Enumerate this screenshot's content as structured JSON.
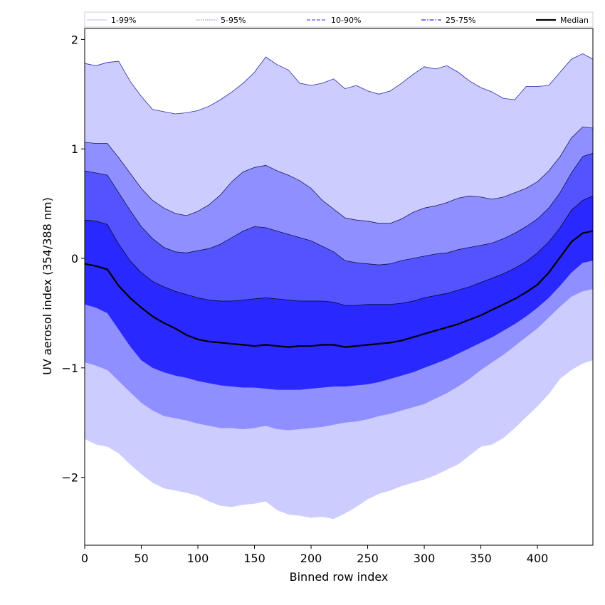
{
  "chart_data": {
    "type": "area",
    "title": "",
    "xlabel": "Binned row index",
    "ylabel": "UV aerosol index (354/388 nm)",
    "xlim": [
      0,
      449
    ],
    "ylim": [
      -2.62,
      2.1
    ],
    "xticks": [
      0,
      50,
      100,
      150,
      200,
      250,
      300,
      350,
      400
    ],
    "yticks": [
      -2,
      -1,
      0,
      1,
      2
    ],
    "ytick_labels": [
      "−2",
      "−1",
      "0",
      "1",
      "2"
    ],
    "grid": false,
    "legend_position": "top",
    "legend": [
      {
        "label": "1-99%",
        "color": "#ccccff",
        "dash": "solid"
      },
      {
        "label": "5-95%",
        "color": "#8f8fff",
        "dash": "dotted"
      },
      {
        "label": "10-90%",
        "color": "#5454ff",
        "dash": "dashed"
      },
      {
        "label": "25-75%",
        "color": "#2929ff",
        "dash": "dashdot"
      },
      {
        "label": "Median",
        "color": "#000000",
        "dash": "solid"
      }
    ],
    "x": [
      0,
      10,
      20,
      30,
      40,
      50,
      60,
      70,
      80,
      90,
      100,
      110,
      120,
      130,
      140,
      150,
      160,
      170,
      180,
      190,
      200,
      210,
      220,
      230,
      240,
      250,
      260,
      270,
      280,
      290,
      300,
      310,
      320,
      330,
      340,
      350,
      360,
      370,
      380,
      390,
      400,
      410,
      420,
      430,
      440,
      449
    ],
    "bands": [
      {
        "name": "1-99%",
        "color": "#ccccff",
        "upper": [
          1.78,
          1.76,
          1.79,
          1.8,
          1.62,
          1.48,
          1.36,
          1.34,
          1.32,
          1.33,
          1.35,
          1.39,
          1.45,
          1.52,
          1.6,
          1.7,
          1.84,
          1.77,
          1.72,
          1.6,
          1.58,
          1.6,
          1.64,
          1.55,
          1.58,
          1.53,
          1.5,
          1.53,
          1.6,
          1.68,
          1.75,
          1.73,
          1.76,
          1.7,
          1.62,
          1.56,
          1.52,
          1.46,
          1.45,
          1.57,
          1.57,
          1.58,
          1.7,
          1.82,
          1.87,
          1.82
        ],
        "lower": [
          -1.65,
          -1.7,
          -1.72,
          -1.78,
          -1.88,
          -1.97,
          -2.05,
          -2.1,
          -2.12,
          -2.14,
          -2.17,
          -2.22,
          -2.26,
          -2.27,
          -2.25,
          -2.24,
          -2.22,
          -2.3,
          -2.34,
          -2.35,
          -2.37,
          -2.36,
          -2.38,
          -2.33,
          -2.27,
          -2.2,
          -2.15,
          -2.12,
          -2.08,
          -2.05,
          -2.02,
          -1.98,
          -1.93,
          -1.88,
          -1.8,
          -1.72,
          -1.7,
          -1.64,
          -1.55,
          -1.45,
          -1.35,
          -1.24,
          -1.1,
          -1.02,
          -0.96,
          -0.93
        ]
      },
      {
        "name": "5-95%",
        "color": "#8f8fff",
        "upper": [
          1.06,
          1.05,
          1.05,
          0.92,
          0.78,
          0.64,
          0.53,
          0.46,
          0.41,
          0.39,
          0.43,
          0.49,
          0.58,
          0.7,
          0.79,
          0.83,
          0.85,
          0.8,
          0.76,
          0.71,
          0.64,
          0.53,
          0.45,
          0.37,
          0.35,
          0.34,
          0.32,
          0.32,
          0.36,
          0.42,
          0.46,
          0.48,
          0.51,
          0.55,
          0.57,
          0.56,
          0.54,
          0.56,
          0.6,
          0.64,
          0.7,
          0.8,
          0.93,
          1.1,
          1.2,
          1.19
        ],
        "lower": [
          -0.95,
          -0.98,
          -1.02,
          -1.12,
          -1.22,
          -1.32,
          -1.39,
          -1.44,
          -1.46,
          -1.48,
          -1.51,
          -1.53,
          -1.55,
          -1.55,
          -1.56,
          -1.55,
          -1.53,
          -1.56,
          -1.57,
          -1.56,
          -1.55,
          -1.54,
          -1.52,
          -1.5,
          -1.49,
          -1.47,
          -1.44,
          -1.42,
          -1.39,
          -1.36,
          -1.33,
          -1.28,
          -1.23,
          -1.17,
          -1.1,
          -1.02,
          -0.95,
          -0.88,
          -0.8,
          -0.72,
          -0.64,
          -0.54,
          -0.44,
          -0.35,
          -0.3,
          -0.28
        ]
      },
      {
        "name": "10-90%",
        "color": "#5454ff",
        "upper": [
          0.8,
          0.78,
          0.76,
          0.6,
          0.44,
          0.29,
          0.18,
          0.1,
          0.06,
          0.05,
          0.07,
          0.09,
          0.13,
          0.19,
          0.25,
          0.29,
          0.28,
          0.25,
          0.22,
          0.19,
          0.16,
          0.11,
          0.06,
          -0.02,
          -0.04,
          -0.05,
          -0.06,
          -0.05,
          -0.02,
          0.0,
          0.02,
          0.04,
          0.05,
          0.08,
          0.1,
          0.12,
          0.14,
          0.18,
          0.23,
          0.29,
          0.36,
          0.46,
          0.6,
          0.78,
          0.93,
          0.96
        ],
        "lower": [
          -0.42,
          -0.45,
          -0.5,
          -0.65,
          -0.8,
          -0.93,
          -1.0,
          -1.04,
          -1.07,
          -1.09,
          -1.12,
          -1.14,
          -1.16,
          -1.17,
          -1.18,
          -1.18,
          -1.19,
          -1.2,
          -1.2,
          -1.2,
          -1.19,
          -1.18,
          -1.17,
          -1.17,
          -1.16,
          -1.15,
          -1.13,
          -1.1,
          -1.07,
          -1.04,
          -1.0,
          -0.96,
          -0.92,
          -0.87,
          -0.82,
          -0.77,
          -0.72,
          -0.66,
          -0.6,
          -0.53,
          -0.45,
          -0.36,
          -0.25,
          -0.13,
          -0.04,
          -0.02
        ]
      },
      {
        "name": "25-75%",
        "color": "#2929ff",
        "upper": [
          0.35,
          0.34,
          0.31,
          0.13,
          -0.02,
          -0.13,
          -0.21,
          -0.26,
          -0.3,
          -0.33,
          -0.36,
          -0.38,
          -0.39,
          -0.39,
          -0.38,
          -0.37,
          -0.36,
          -0.37,
          -0.38,
          -0.39,
          -0.39,
          -0.39,
          -0.4,
          -0.43,
          -0.43,
          -0.42,
          -0.42,
          -0.42,
          -0.41,
          -0.39,
          -0.36,
          -0.34,
          -0.32,
          -0.29,
          -0.26,
          -0.22,
          -0.18,
          -0.14,
          -0.09,
          -0.03,
          0.05,
          0.15,
          0.28,
          0.44,
          0.53,
          0.57
        ],
        "lower": [
          -0.42,
          -0.45,
          -0.5,
          -0.65,
          -0.8,
          -0.93,
          -1.0,
          -1.04,
          -1.07,
          -1.09,
          -1.12,
          -1.14,
          -1.16,
          -1.17,
          -1.18,
          -1.18,
          -1.19,
          -1.2,
          -1.2,
          -1.2,
          -1.19,
          -1.18,
          -1.17,
          -1.17,
          -1.16,
          -1.15,
          -1.13,
          -1.1,
          -1.07,
          -1.04,
          -1.0,
          -0.96,
          -0.92,
          -0.87,
          -0.82,
          -0.77,
          -0.72,
          -0.66,
          -0.6,
          -0.53,
          -0.45,
          -0.36,
          -0.25,
          -0.13,
          -0.04,
          -0.02
        ]
      }
    ],
    "series": [
      {
        "name": "Median",
        "color": "#000000",
        "values": [
          -0.05,
          -0.07,
          -0.1,
          -0.25,
          -0.36,
          -0.45,
          -0.53,
          -0.59,
          -0.64,
          -0.7,
          -0.74,
          -0.76,
          -0.77,
          -0.78,
          -0.79,
          -0.8,
          -0.79,
          -0.8,
          -0.81,
          -0.8,
          -0.8,
          -0.79,
          -0.79,
          -0.81,
          -0.8,
          -0.79,
          -0.78,
          -0.77,
          -0.75,
          -0.72,
          -0.69,
          -0.66,
          -0.63,
          -0.6,
          -0.56,
          -0.52,
          -0.47,
          -0.42,
          -0.37,
          -0.31,
          -0.24,
          -0.13,
          0.01,
          0.15,
          0.23,
          0.25
        ]
      }
    ]
  }
}
